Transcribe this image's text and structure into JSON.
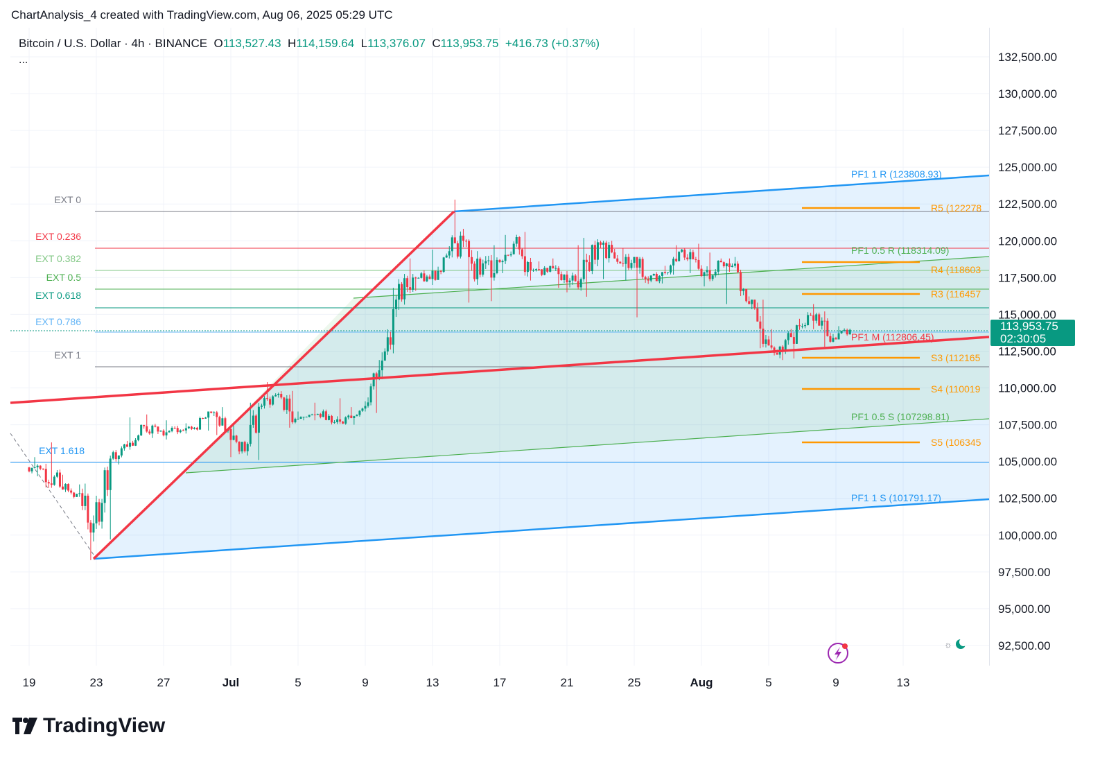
{
  "caption": "ChartAnalysis_4 created with TradingView.com, Aug 06, 2025 05:29 UTC",
  "legend": {
    "symbol": "Bitcoin / U.S. Dollar · 4h · BINANCE",
    "o_label": "O",
    "o": "113,527.43",
    "h_label": "H",
    "h": "114,159.64",
    "l_label": "L",
    "l": "113,376.07",
    "c_label": "C",
    "c": "113,953.75",
    "change": "+416.73 (+0.37%)",
    "more": "..."
  },
  "price_tag": {
    "price": "113,953.75",
    "countdown": "02:30:05"
  },
  "colors": {
    "up": "#089981",
    "down": "#f23645",
    "pitchfork_outer": "#2196f3",
    "median": "#f23645",
    "half": "#4caf50",
    "pivot": "#ff9800"
  },
  "logo": "TradingView",
  "icons": [
    "lightning-icon",
    "theme-toggle-icon"
  ],
  "chart_data": {
    "type": "candlestick",
    "timeframe": "4h",
    "y_ticks": [
      "132,500.00",
      "130,000.00",
      "127,500.00",
      "125,000.00",
      "122,500.00",
      "120,000.00",
      "117,500.00",
      "115,000.00",
      "112,500.00",
      "110,000.00",
      "107,500.00",
      "105,000.00",
      "102,500.00",
      "100,000.00",
      "97,500.00",
      "95,000.00",
      "92,500.00"
    ],
    "x_ticks": [
      "19",
      "23",
      "27",
      "Jul",
      "5",
      "9",
      "13",
      "17",
      "21",
      "25",
      "Aug",
      "5",
      "9",
      "13"
    ],
    "ylim": [
      92500,
      132500
    ],
    "xlim": [
      "2025-06-19",
      "2025-08-14"
    ],
    "daily_ohlc": [
      [
        "06-19",
        104600,
        105300,
        104000,
        104500
      ],
      [
        "06-20",
        104500,
        106300,
        103200,
        103300
      ],
      [
        "06-21",
        103300,
        104100,
        102500,
        102800
      ],
      [
        "06-22",
        102800,
        103500,
        98300,
        100800
      ],
      [
        "06-23",
        100800,
        105400,
        99700,
        105200
      ],
      [
        "06-24",
        105200,
        106400,
        104800,
        106000
      ],
      [
        "06-25",
        106000,
        108000,
        105800,
        107400
      ],
      [
        "06-26",
        107400,
        108200,
        106600,
        107100
      ],
      [
        "06-27",
        107100,
        107800,
        106500,
        107000
      ],
      [
        "06-28",
        107000,
        107600,
        106900,
        107300
      ],
      [
        "06-29",
        107300,
        108400,
        107100,
        108300
      ],
      [
        "06-30",
        108300,
        108700,
        106800,
        107200
      ],
      [
        "07-01",
        107200,
        107500,
        105300,
        105700
      ],
      [
        "07-02",
        105700,
        109000,
        105100,
        108800
      ],
      [
        "07-03",
        108800,
        110400,
        108600,
        109600
      ],
      [
        "07-04",
        109600,
        109800,
        107300,
        107900
      ],
      [
        "07-05",
        107900,
        108400,
        107800,
        108200
      ],
      [
        "07-06",
        108200,
        109000,
        107800,
        108100
      ],
      [
        "07-07",
        108100,
        109300,
        107500,
        108000
      ],
      [
        "07-08",
        108000,
        108700,
        107500,
        108600
      ],
      [
        "07-09",
        108600,
        111900,
        108300,
        111200
      ],
      [
        "07-10",
        111200,
        116800,
        110600,
        116000
      ],
      [
        "07-11",
        116000,
        118800,
        115300,
        117500
      ],
      [
        "07-12",
        117500,
        118000,
        116600,
        117400
      ],
      [
        "07-13",
        117400,
        119400,
        117000,
        119000
      ],
      [
        "07-14",
        119000,
        122800,
        118800,
        120000
      ],
      [
        "07-15",
        120000,
        120100,
        115800,
        117700
      ],
      [
        "07-16",
        117700,
        119700,
        115900,
        118700
      ],
      [
        "07-17",
        118700,
        120400,
        117800,
        119800
      ],
      [
        "07-18",
        119800,
        120600,
        117300,
        118000
      ],
      [
        "07-19",
        118000,
        118600,
        117600,
        117900
      ],
      [
        "07-20",
        117900,
        118800,
        116800,
        117700
      ],
      [
        "07-21",
        117700,
        119700,
        116500,
        117400
      ],
      [
        "07-22",
        117400,
        120200,
        116200,
        119900
      ],
      [
        "07-23",
        119900,
        120000,
        117400,
        118800
      ],
      [
        "07-24",
        118800,
        119500,
        117300,
        118500
      ],
      [
        "07-25",
        118500,
        118900,
        114800,
        117300
      ],
      [
        "07-26",
        117300,
        118300,
        117100,
        117800
      ],
      [
        "07-27",
        117800,
        119700,
        117700,
        119400
      ],
      [
        "07-28",
        119400,
        119800,
        117800,
        118100
      ],
      [
        "07-29",
        118100,
        119200,
        116900,
        117900
      ],
      [
        "07-30",
        117900,
        118800,
        115700,
        118300
      ],
      [
        "07-31",
        118300,
        118900,
        115800,
        115700
      ],
      [
        "08-01",
        115700,
        116000,
        112700,
        113300
      ],
      [
        "08-02",
        113300,
        114000,
        111900,
        112500
      ],
      [
        "08-03",
        112500,
        114700,
        112000,
        114200
      ],
      [
        "08-04",
        114200,
        115700,
        114000,
        115000
      ],
      [
        "08-05",
        115000,
        115200,
        112800,
        113400
      ],
      [
        "08-06",
        113400,
        114200,
        113300,
        113950
      ]
    ],
    "annotations": {
      "fib_ext": [
        "EXT 0",
        "EXT 0.236",
        "EXT 0.382",
        "EXT 0.5",
        "EXT 0.618",
        "EXT 0.786",
        "EXT 1",
        "EXT 1.618"
      ],
      "pitchfork": [
        "PF1 1 R (123808.93)",
        "PF1 0.5 R (118314.09)",
        "PF1 M (112806.45)",
        "PF1 0.5 S (107298.81)",
        "PF1 1 S (101791.17)"
      ],
      "pivots": [
        "R5 (122278",
        "R4 (118603",
        "R3 (116457",
        "S3 (112165",
        "S4 (110019",
        "S5 (106345"
      ]
    }
  }
}
